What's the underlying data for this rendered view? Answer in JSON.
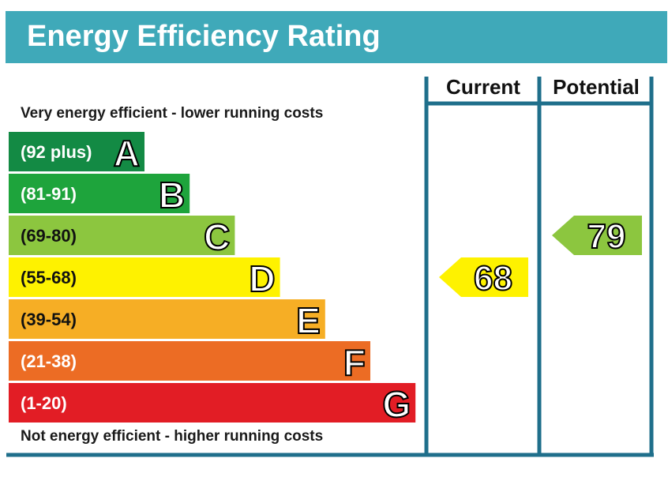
{
  "title": "Energy Efficiency Rating",
  "caption_top": "Very energy efficient - lower running costs",
  "caption_bottom": "Not energy efficient - higher running costs",
  "columns": {
    "current": "Current",
    "potential": "Potential"
  },
  "colors": {
    "title_bar": "#3fa9b9",
    "frame": "#1f6f8b"
  },
  "chart_data": {
    "type": "bar",
    "bands": [
      {
        "letter": "A",
        "range": "(92 plus)",
        "color": "#138a44"
      },
      {
        "letter": "B",
        "range": "(81-91)",
        "color": "#1ea43c"
      },
      {
        "letter": "C",
        "range": "(69-80)",
        "color": "#8cc63f"
      },
      {
        "letter": "D",
        "range": "(55-68)",
        "color": "#fef200"
      },
      {
        "letter": "E",
        "range": "(39-54)",
        "color": "#f6ae25"
      },
      {
        "letter": "F",
        "range": "(21-38)",
        "color": "#ec6c24"
      },
      {
        "letter": "G",
        "range": "(1-20)",
        "color": "#e21d25"
      }
    ],
    "current": {
      "value": 68,
      "band": "D",
      "color": "#fef200"
    },
    "potential": {
      "value": 79,
      "band": "C",
      "color": "#8cc63f"
    }
  }
}
